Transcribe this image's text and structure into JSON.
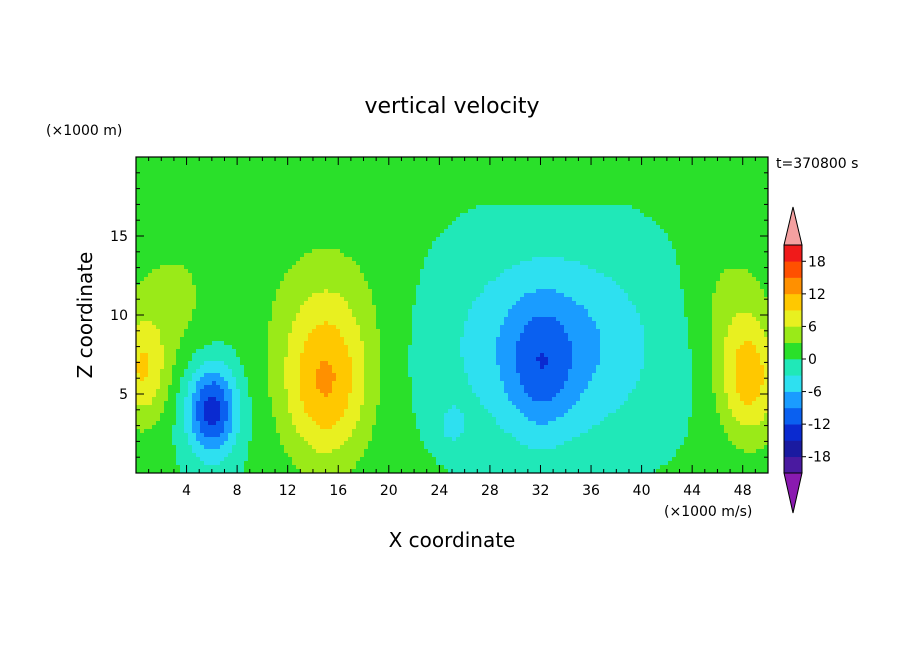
{
  "chart_data": {
    "type": "heatmap",
    "title": "vertical velocity",
    "xlabel": "X coordinate",
    "ylabel": "Z coordinate",
    "x_unit": "(×1000 m/s)",
    "y_unit": "(×1000 m)",
    "time_label": "t=370800 s",
    "xlim": [
      0,
      50
    ],
    "ylim": [
      0,
      20
    ],
    "x_ticks": [
      4,
      8,
      12,
      16,
      20,
      24,
      28,
      32,
      36,
      40,
      44,
      48
    ],
    "y_ticks": [
      5,
      10,
      15
    ],
    "colorbar": {
      "levels": [
        -21,
        -18,
        -15,
        -12,
        -9,
        -6,
        -3,
        0,
        3,
        6,
        9,
        12,
        15,
        18,
        21
      ],
      "tick_labels": [
        18,
        12,
        6,
        0,
        -6,
        -12,
        -18
      ],
      "colors": [
        "#8a1ab0",
        "#4a1aa0",
        "#1a1aa0",
        "#0a2ad0",
        "#0a60f0",
        "#1a9cff",
        "#2ee0f0",
        "#20e8b8",
        "#2ae02a",
        "#9aea18",
        "#e8f020",
        "#ffc800",
        "#ff9000",
        "#ff5000",
        "#f01a1a",
        "#f4a0a0"
      ]
    },
    "background_value": 0.5,
    "features": [
      {
        "kind": "updraft",
        "x": 0.5,
        "z": 6.5,
        "sx": 2.0,
        "sz": 3.5,
        "amp": 8
      },
      {
        "kind": "downdraft",
        "x": 6,
        "z": 4.0,
        "sx": 2.0,
        "sz": 3.0,
        "amp": -14
      },
      {
        "kind": "updraft",
        "x": 15,
        "z": 5.5,
        "sx": 3.5,
        "sz": 5.0,
        "amp": 11
      },
      {
        "kind": "updraft",
        "x": 3,
        "z": 11,
        "sx": 4.0,
        "sz": 5.0,
        "amp": 3
      },
      {
        "kind": "updraft",
        "x": 15,
        "z": 11,
        "sx": 5.0,
        "sz": 5.0,
        "amp": 3
      },
      {
        "kind": "downdraft",
        "x": 33,
        "z": 8,
        "sx": 8.0,
        "sz": 6.0,
        "amp": -8
      },
      {
        "kind": "downdraft",
        "x": 32,
        "z": 6.5,
        "sx": 2.5,
        "sz": 4.0,
        "amp": -5
      },
      {
        "kind": "downdraft",
        "x": 25,
        "z": 3.0,
        "sx": 1.0,
        "sz": 1.2,
        "amp": -4
      },
      {
        "kind": "updraft",
        "x": 48.5,
        "z": 6.0,
        "sx": 2.5,
        "sz": 4.0,
        "amp": 10
      },
      {
        "kind": "updraft",
        "x": 47,
        "z": 11,
        "sx": 3.0,
        "sz": 4.0,
        "amp": 3
      }
    ]
  }
}
